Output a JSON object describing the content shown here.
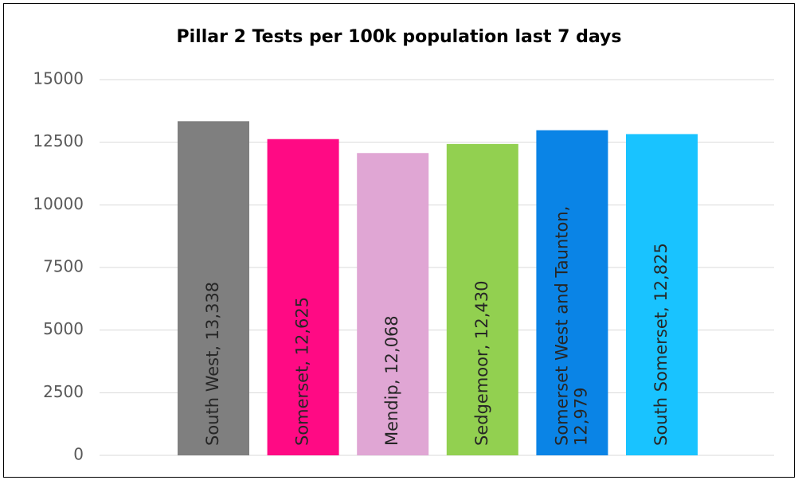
{
  "chart_data": {
    "type": "bar",
    "title": "Pillar 2 Tests per 100k population last 7 days",
    "values": [
      13338,
      12625,
      12068,
      12430,
      12979,
      12825
    ],
    "value_labels": [
      "South West, 13,338",
      "Somerset, 12,625",
      "Mendip, 12,068",
      "Sedgemoor, 12,430",
      "Somerset West and Taunton, 12,979",
      "South Somerset, 12,825"
    ],
    "colors": [
      "#7f7f7f",
      "#ff0a84",
      "#e0a6d4",
      "#92d050",
      "#0a84e6",
      "#19c3ff"
    ],
    "ylim": [
      0,
      15000
    ],
    "yticks": [
      0,
      2500,
      5000,
      7500,
      10000,
      12500,
      15000
    ],
    "grid": true
  }
}
